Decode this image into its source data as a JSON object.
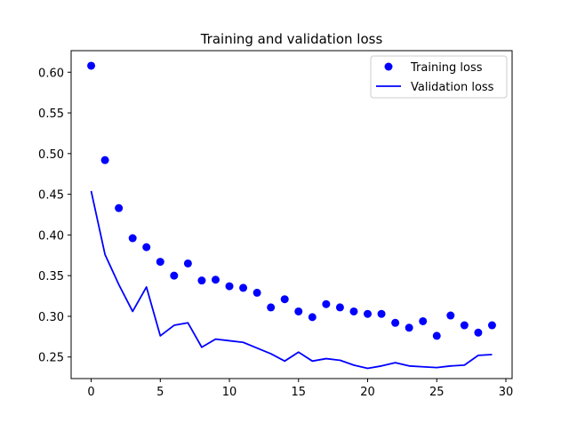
{
  "chart_data": {
    "type": "line",
    "title": "Training and validation loss",
    "xlabel": "",
    "ylabel": "",
    "xlim": [
      -1.45,
      30.45
    ],
    "ylim": [
      0.2235,
      0.6265
    ],
    "x_ticks": [
      0,
      5,
      10,
      15,
      20,
      25,
      30
    ],
    "y_ticks": [
      0.25,
      0.3,
      0.35,
      0.4,
      0.45,
      0.5,
      0.55,
      0.6
    ],
    "x_tick_labels": [
      "0",
      "5",
      "10",
      "15",
      "20",
      "25",
      "30"
    ],
    "y_tick_labels": [
      "0.25",
      "0.30",
      "0.35",
      "0.40",
      "0.45",
      "0.50",
      "0.55",
      "0.60"
    ],
    "grid": false,
    "legend_position": "top-right",
    "x": [
      0,
      1,
      2,
      3,
      4,
      5,
      6,
      7,
      8,
      9,
      10,
      11,
      12,
      13,
      14,
      15,
      16,
      17,
      18,
      19,
      20,
      21,
      22,
      23,
      24,
      25,
      26,
      27,
      28,
      29
    ],
    "series": [
      {
        "name": "Training loss",
        "style": "points",
        "color": "#0000ff",
        "values": [
          0.608,
          0.492,
          0.433,
          0.396,
          0.385,
          0.367,
          0.35,
          0.365,
          0.344,
          0.345,
          0.337,
          0.335,
          0.329,
          0.311,
          0.321,
          0.306,
          0.299,
          0.315,
          0.311,
          0.306,
          0.303,
          0.303,
          0.292,
          0.286,
          0.294,
          0.276,
          0.301,
          0.289,
          0.28,
          0.289
        ]
      },
      {
        "name": "Validation loss",
        "style": "line",
        "color": "#0000ff",
        "values": [
          0.454,
          0.376,
          0.339,
          0.306,
          0.336,
          0.276,
          0.289,
          0.292,
          0.262,
          0.272,
          0.27,
          0.268,
          0.261,
          0.254,
          0.245,
          0.256,
          0.245,
          0.248,
          0.246,
          0.24,
          0.236,
          0.239,
          0.243,
          0.239,
          0.238,
          0.237,
          0.239,
          0.24,
          0.252,
          0.253
        ]
      }
    ]
  }
}
